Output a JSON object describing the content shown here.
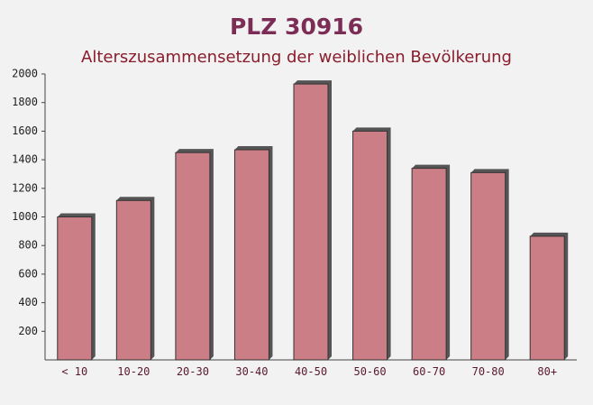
{
  "chart_data": {
    "type": "bar",
    "title": "PLZ 30916",
    "subtitle": "Alterszusammensetzung der weiblichen Bevölkerung",
    "categories": [
      "< 10",
      "10-20",
      "20-30",
      "30-40",
      "40-50",
      "50-60",
      "60-70",
      "70-80",
      "80+"
    ],
    "values": [
      1000,
      1115,
      1450,
      1470,
      1930,
      1600,
      1340,
      1310,
      865
    ],
    "color": "#c46a72",
    "ylim": [
      0,
      2000
    ],
    "yticks": [
      200,
      400,
      600,
      800,
      1000,
      1200,
      1400,
      1600,
      1800,
      2000
    ]
  }
}
